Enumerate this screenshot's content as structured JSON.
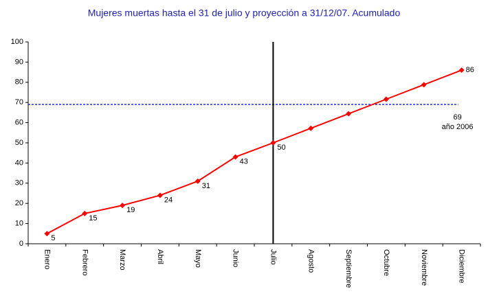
{
  "chart_data": {
    "type": "line",
    "title": "Mujeres muertas hasta el 31 de julio y proyección a 31/12/07. Acumulado",
    "categories": [
      "Enero",
      "Febrero",
      "Marzo",
      "Abril",
      "Mayo",
      "Junio",
      "Julio",
      "Agosto",
      "Septiembre",
      "Octubre",
      "Noviembre",
      "Diciembre"
    ],
    "series": [
      {
        "name": "Acumulado",
        "color": "#ff0000",
        "values": [
          5,
          15,
          19,
          24,
          31,
          43,
          50,
          57.2,
          64.4,
          71.6,
          78.8,
          86
        ],
        "show_labels": [
          true,
          true,
          true,
          true,
          true,
          true,
          true,
          false,
          false,
          false,
          false,
          true
        ]
      }
    ],
    "ylim": [
      0,
      100
    ],
    "yticks": [
      0,
      10,
      20,
      30,
      40,
      50,
      60,
      70,
      80,
      90,
      100
    ],
    "reference": {
      "value": 69,
      "label": "año 2006",
      "color": "#0000ff"
    },
    "vline_index": 6,
    "grid": false
  }
}
